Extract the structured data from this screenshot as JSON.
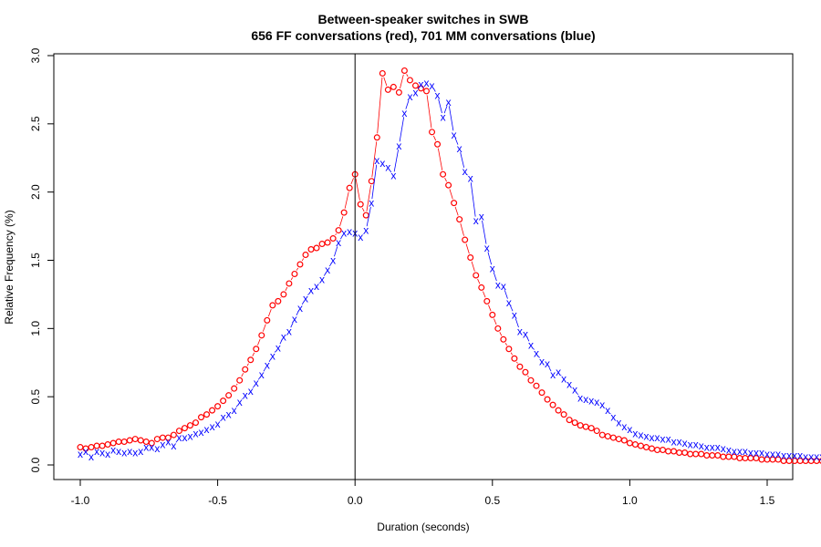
{
  "chart_data": {
    "type": "line",
    "title": "Between-speaker switches in SWB",
    "subtitle": "656 FF conversations (red), 701 MM conversations (blue)",
    "xlabel": "Duration (seconds)",
    "ylabel": "Relative Frequency (%)",
    "xlim": [
      -1.0,
      1.5
    ],
    "ylim": [
      0.0,
      3.0
    ],
    "xticks": [
      "-1.0",
      "-0.5",
      "0.0",
      "0.5",
      "1.0",
      "1.5"
    ],
    "yticks": [
      "0.0",
      "0.5",
      "1.0",
      "1.5",
      "2.0",
      "2.5",
      "3.0"
    ],
    "vline_x": 0.0,
    "x_start": -1.0,
    "x_step": 0.02,
    "series": [
      {
        "color": "#ff0000",
        "marker": "o",
        "values": [
          0.13,
          0.12,
          0.13,
          0.14,
          0.14,
          0.15,
          0.16,
          0.17,
          0.17,
          0.18,
          0.19,
          0.18,
          0.17,
          0.16,
          0.19,
          0.2,
          0.2,
          0.22,
          0.25,
          0.27,
          0.29,
          0.31,
          0.35,
          0.37,
          0.4,
          0.43,
          0.47,
          0.51,
          0.56,
          0.62,
          0.7,
          0.77,
          0.85,
          0.95,
          1.06,
          1.17,
          1.2,
          1.25,
          1.33,
          1.4,
          1.47,
          1.54,
          1.58,
          1.59,
          1.62,
          1.63,
          1.66,
          1.72,
          1.85,
          2.03,
          2.13,
          1.91,
          1.83,
          2.08,
          2.4,
          2.87,
          2.75,
          2.77,
          2.73,
          2.89,
          2.82,
          2.78,
          2.76,
          2.74,
          2.44,
          2.35,
          2.13,
          2.05,
          1.92,
          1.8,
          1.65,
          1.52,
          1.39,
          1.3,
          1.2,
          1.1,
          1.0,
          0.92,
          0.85,
          0.78,
          0.72,
          0.68,
          0.62,
          0.58,
          0.53,
          0.48,
          0.44,
          0.4,
          0.37,
          0.33,
          0.31,
          0.29,
          0.28,
          0.27,
          0.25,
          0.22,
          0.21,
          0.2,
          0.19,
          0.18,
          0.16,
          0.15,
          0.14,
          0.13,
          0.12,
          0.11,
          0.11,
          0.1,
          0.1,
          0.09,
          0.09,
          0.08,
          0.08,
          0.08,
          0.07,
          0.07,
          0.07,
          0.06,
          0.06,
          0.06,
          0.05,
          0.05,
          0.05,
          0.05,
          0.04,
          0.04,
          0.04,
          0.04,
          0.03,
          0.03,
          0.03,
          0.03,
          0.03,
          0.03,
          0.03,
          0.03,
          0.03,
          0.02,
          0.02,
          0.02,
          0.02,
          0.02,
          0.02,
          0.01,
          0.01,
          0.01,
          0.01,
          0.01,
          0.01,
          0.01,
          0.01,
          0.01,
          0.01,
          0.01,
          0.01,
          0.01,
          0.01,
          0.01,
          0.01,
          0.01,
          0.01,
          0.01,
          0.01,
          0.01,
          0.01
        ]
      },
      {
        "color": "#0000ff",
        "marker": "x",
        "values": [
          0.08,
          0.1,
          0.06,
          0.1,
          0.09,
          0.08,
          0.11,
          0.1,
          0.09,
          0.1,
          0.09,
          0.1,
          0.13,
          0.13,
          0.12,
          0.15,
          0.17,
          0.14,
          0.2,
          0.2,
          0.21,
          0.23,
          0.24,
          0.26,
          0.28,
          0.3,
          0.35,
          0.37,
          0.4,
          0.46,
          0.51,
          0.54,
          0.6,
          0.66,
          0.73,
          0.8,
          0.86,
          0.94,
          0.98,
          1.07,
          1.15,
          1.22,
          1.28,
          1.31,
          1.36,
          1.43,
          1.5,
          1.63,
          1.7,
          1.71,
          1.7,
          1.67,
          1.72,
          1.92,
          2.23,
          2.21,
          2.18,
          2.12,
          2.34,
          2.58,
          2.7,
          2.73,
          2.79,
          2.8,
          2.78,
          2.71,
          2.55,
          2.66,
          2.42,
          2.32,
          2.15,
          2.1,
          1.79,
          1.82,
          1.59,
          1.44,
          1.32,
          1.31,
          1.19,
          1.1,
          0.98,
          0.96,
          0.88,
          0.82,
          0.76,
          0.74,
          0.66,
          0.68,
          0.63,
          0.59,
          0.55,
          0.49,
          0.48,
          0.47,
          0.46,
          0.44,
          0.4,
          0.35,
          0.31,
          0.28,
          0.26,
          0.23,
          0.22,
          0.21,
          0.2,
          0.2,
          0.19,
          0.19,
          0.17,
          0.17,
          0.16,
          0.15,
          0.15,
          0.14,
          0.13,
          0.13,
          0.13,
          0.12,
          0.11,
          0.1,
          0.1,
          0.1,
          0.09,
          0.09,
          0.09,
          0.08,
          0.08,
          0.08,
          0.07,
          0.07,
          0.07,
          0.07,
          0.06,
          0.06,
          0.06,
          0.06,
          0.06,
          0.06,
          0.05,
          0.05,
          0.05,
          0.05,
          0.05,
          0.05,
          0.05,
          0.04,
          0.04,
          0.04,
          0.04,
          0.04,
          0.04,
          0.04,
          0.04,
          0.04,
          0.04,
          0.04,
          0.04,
          0.04,
          0.04,
          0.04,
          0.04,
          0.04,
          0.04,
          0.04
        ]
      }
    ],
    "grid": false,
    "legend": "none"
  }
}
